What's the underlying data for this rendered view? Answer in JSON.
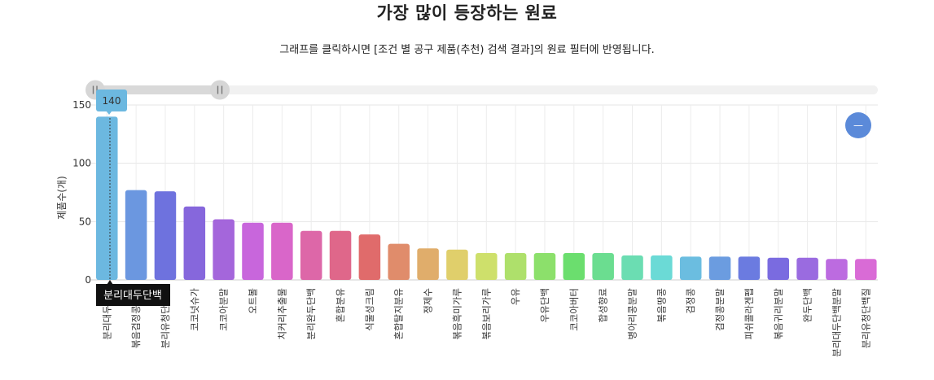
{
  "page": {
    "title": "가장 많이 등장하는 원료",
    "subtitle": "그래프를 클릭하시면 [조건 별 공구 제품(추천) 검색 결과]의 원료 필터에 반영됩니다."
  },
  "slider": {
    "handle_left_icon": "pause-grip-icon",
    "handle_right_icon": "pause-grip-icon"
  },
  "zoom_button": {
    "label": "—",
    "icon": "minus-icon",
    "color": "#5b8ad9"
  },
  "tooltip": {
    "value": "140",
    "category": "분리대두단백"
  },
  "chart_data": {
    "type": "bar",
    "ylabel": "제품수(개)",
    "ylim": [
      0,
      150
    ],
    "yticks": [
      0,
      50,
      100,
      150
    ],
    "grid": true,
    "categories": [
      "분리대두단백",
      "볶음검정콩가루",
      "분리유청단백질",
      "코코넛슈가",
      "코코아분말",
      "오트볼",
      "치커리추출물",
      "분리완두단백",
      "혼합분유",
      "식물성크림",
      "혼합탈지분유",
      "정제수",
      "볶음흑미가루",
      "볶음보리가루",
      "우유",
      "우유단백",
      "코코아버터",
      "합성향료",
      "병아리콩분말",
      "볶음땅콩",
      "검정콩",
      "검정콩분말",
      "피쉬콜라겐펩",
      "볶음귀리분말",
      "완두단백",
      "분리대두단백분말",
      "분리유청단백질"
    ],
    "values": [
      140,
      77,
      76,
      63,
      52,
      49,
      49,
      42,
      42,
      39,
      31,
      27,
      26,
      23,
      23,
      23,
      23,
      23,
      21,
      21,
      20,
      20,
      20,
      19,
      19,
      18,
      18
    ],
    "colors": [
      "#6cb8e0",
      "#6b97e0",
      "#6e72de",
      "#8667dc",
      "#a466db",
      "#c866dc",
      "#d966c9",
      "#dd67a8",
      "#df678a",
      "#e06b6b",
      "#e08c6b",
      "#e0ad6b",
      "#e0cf6b",
      "#cee06b",
      "#aee06b",
      "#8ce06b",
      "#6bde6e",
      "#6bdd90",
      "#6bddb2",
      "#6bdad6",
      "#6bbde0",
      "#6b9ce0",
      "#6b7be0",
      "#7a6be0",
      "#9a6be0",
      "#bc6be0",
      "#d96bd6"
    ],
    "highlighted_index": 0
  }
}
